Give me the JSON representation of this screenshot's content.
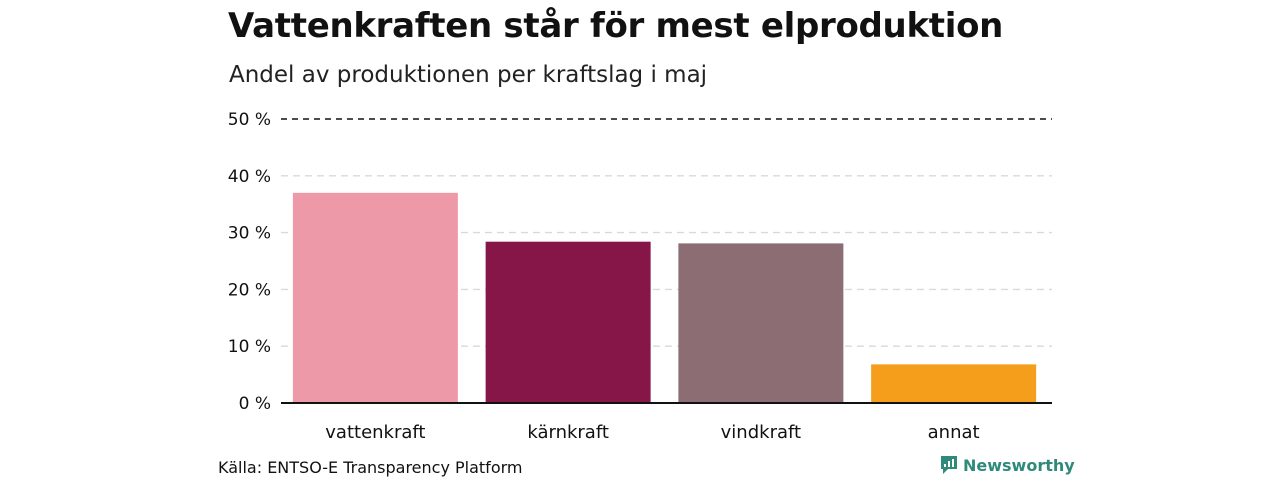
{
  "title": "Vattenkraften står för mest elproduktion",
  "subtitle": "Andel av produktionen per kraftslag i maj",
  "source": "Källa: ENTSO-E Transparency Platform",
  "brand": "Newsworthy",
  "chart_data": {
    "type": "bar",
    "title": "Vattenkraften står för mest elproduktion",
    "subtitle": "Andel av produktionen per kraftslag i maj",
    "categories": [
      "vattenkraft",
      "kärnkraft",
      "vindkraft",
      "annat"
    ],
    "values": [
      37,
      28.4,
      28.1,
      6.8
    ],
    "colors": [
      "#ee99a8",
      "#861647",
      "#8c6d74",
      "#f59e1b"
    ],
    "ylim": [
      0,
      50
    ],
    "yticks": [
      0,
      10,
      20,
      30,
      40,
      50
    ],
    "ytick_labels": [
      "0 %",
      "10 %",
      "20 %",
      "30 %",
      "40 %",
      "50 %"
    ],
    "grid": true,
    "xlabel": "",
    "ylabel": ""
  }
}
